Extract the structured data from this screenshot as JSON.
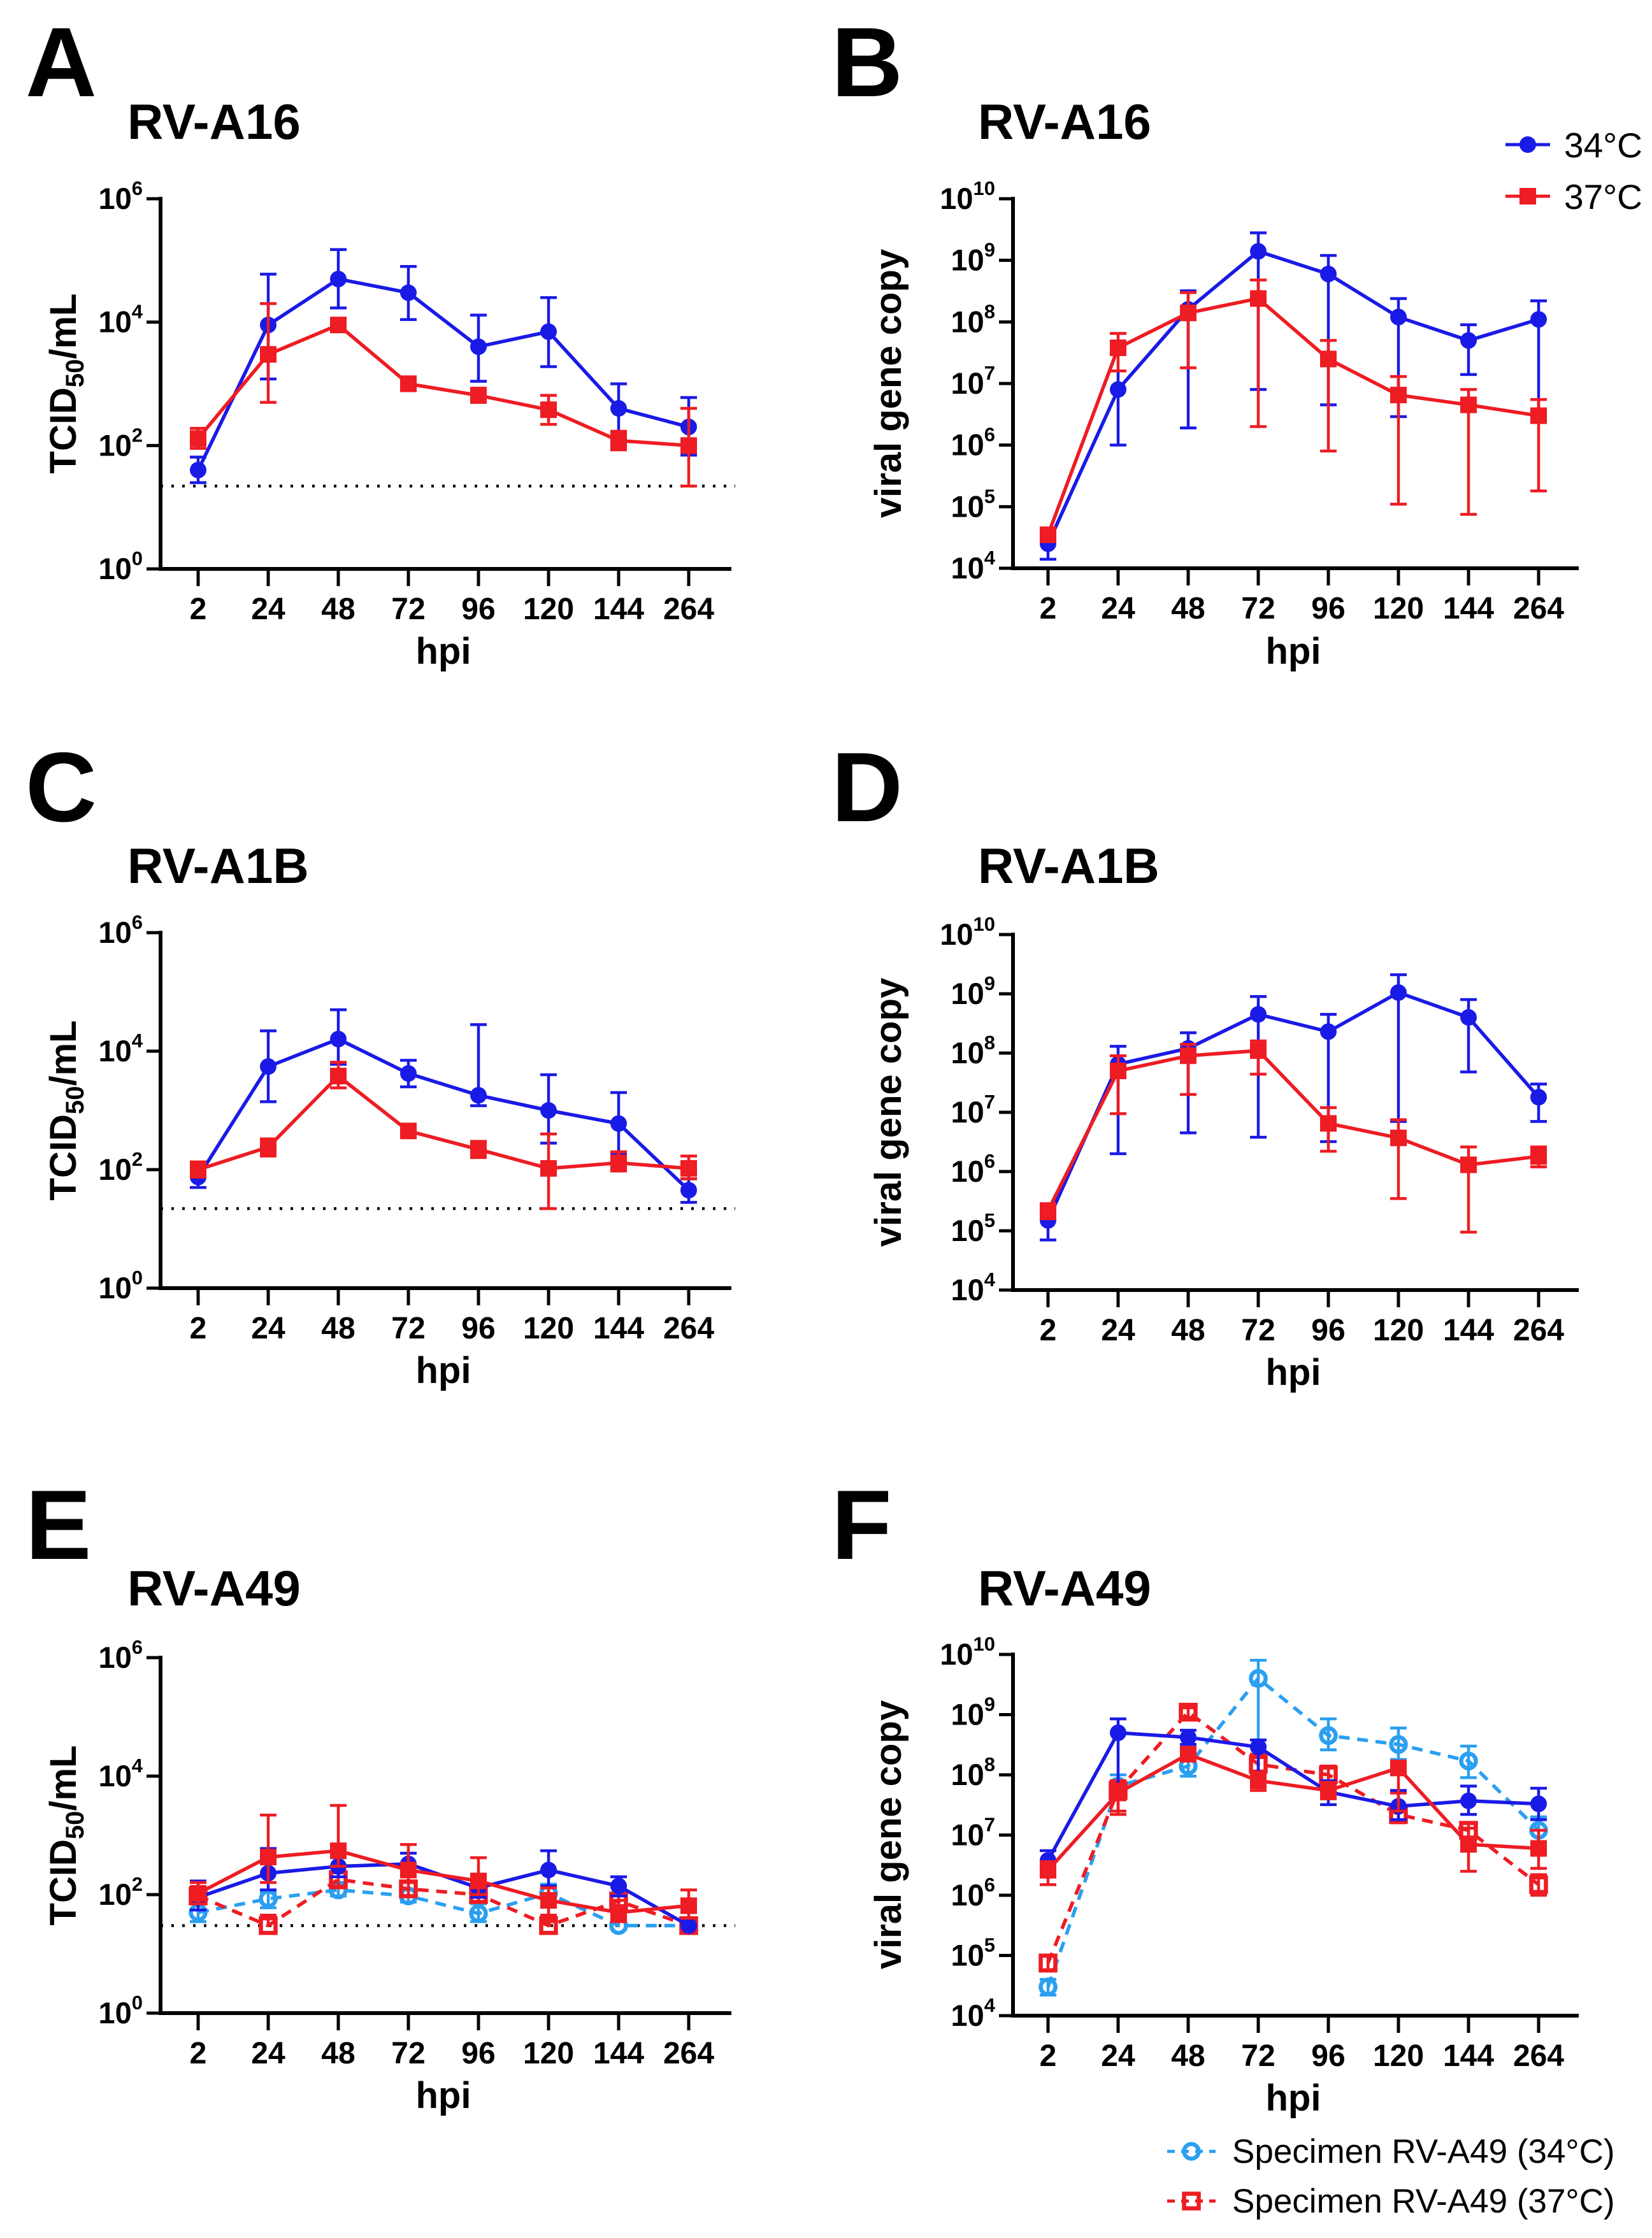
{
  "figure": {
    "background": "#ffffff"
  },
  "colors": {
    "blue_34": "#1a1ae6",
    "red_37": "#ee1c23",
    "cyan_specimen": "#2b9ff0",
    "axis": "#000000"
  },
  "panels": [
    {
      "letter": "A",
      "title": "RV-A16",
      "ylabel_main": "TCID",
      "ylabel_sub": "50",
      "ylabel_rest": "/mL",
      "xlabel": "hpi"
    },
    {
      "letter": "B",
      "title": "RV-A16",
      "ylabel_main": "viral gene copy",
      "ylabel_sub": "",
      "ylabel_rest": "",
      "xlabel": "hpi"
    },
    {
      "letter": "C",
      "title": "RV-A1B",
      "ylabel_main": "TCID",
      "ylabel_sub": "50",
      "ylabel_rest": "/mL",
      "xlabel": "hpi"
    },
    {
      "letter": "D",
      "title": "RV-A1B",
      "ylabel_main": "viral gene copy",
      "ylabel_sub": "",
      "ylabel_rest": "",
      "xlabel": "hpi"
    },
    {
      "letter": "E",
      "title": "RV-A49",
      "ylabel_main": "TCID",
      "ylabel_sub": "50",
      "ylabel_rest": "/mL",
      "xlabel": "hpi"
    },
    {
      "letter": "F",
      "title": "RV-A49",
      "ylabel_main": "viral gene copy",
      "ylabel_sub": "",
      "ylabel_rest": "",
      "xlabel": "hpi"
    }
  ],
  "legend_top": {
    "items": [
      {
        "label": "34°C",
        "marker": "circle-filled",
        "color": "#1a1ae6",
        "line": "solid"
      },
      {
        "label": "37°C",
        "marker": "square-filled",
        "color": "#ee1c23",
        "line": "solid"
      }
    ]
  },
  "legend_bottom": {
    "items": [
      {
        "label": "Specimen RV-A49 (34°C)",
        "marker": "circle-open",
        "color": "#2b9ff0",
        "line": "dashed"
      },
      {
        "label": "Specimen RV-A49 (37°C)",
        "marker": "square-open",
        "color": "#ee1c23",
        "line": "dashed"
      }
    ]
  },
  "chart_data": [
    {
      "type": "line",
      "title": "RV-A16",
      "xlabel": "hpi",
      "ylabel": "TCID50/mL",
      "yscale": "log10",
      "x_categories": [
        "2",
        "24",
        "48",
        "72",
        "96",
        "120",
        "144",
        "264"
      ],
      "y_axis": {
        "exp_min": 0,
        "exp_max": 6,
        "ticks_exp": [
          0,
          2,
          4,
          6
        ]
      },
      "detection_limit": 22,
      "series": [
        {
          "name": "34°C",
          "color": "#1a1ae6",
          "marker": "circle-filled",
          "line": "solid",
          "values": [
            40,
            9000,
            50000,
            30000,
            4000,
            7000,
            400,
            200
          ],
          "err_hi": [
            65,
            60000,
            150000,
            80000,
            13000,
            25000,
            1000,
            600
          ],
          "err_lo": [
            25,
            1200,
            17000,
            11000,
            1100,
            1900,
            150,
            70
          ]
        },
        {
          "name": "37°C",
          "color": "#ee1c23",
          "marker": "square-filled",
          "line": "solid",
          "values": [
            130,
            3000,
            9000,
            1000,
            650,
            380,
            120,
            100
          ],
          "err_hi": [
            190,
            20000,
            9500,
            1300,
            850,
            650,
            170,
            400
          ],
          "err_lo": [
            90,
            500,
            8500,
            800,
            500,
            220,
            85,
            22
          ]
        }
      ]
    },
    {
      "type": "line",
      "title": "RV-A16",
      "xlabel": "hpi",
      "ylabel": "viral gene copy",
      "yscale": "log10",
      "x_categories": [
        "2",
        "24",
        "48",
        "72",
        "96",
        "120",
        "144",
        "264"
      ],
      "y_axis": {
        "exp_min": 4,
        "exp_max": 10,
        "ticks_exp": [
          4,
          5,
          6,
          7,
          8,
          9,
          10
        ]
      },
      "detection_limit": null,
      "series": [
        {
          "name": "34°C",
          "color": "#1a1ae6",
          "marker": "circle-filled",
          "line": "solid",
          "values": [
            25000,
            8000000.0,
            160000000.0,
            1400000000.0,
            600000000.0,
            120000000.0,
            50000000.0,
            110000000.0
          ],
          "err_hi": [
            40000,
            16000000.0,
            320000000.0,
            2800000000.0,
            1200000000.0,
            240000000.0,
            90000000.0,
            220000000.0
          ],
          "err_lo": [
            14000,
            1000000.0,
            1900000.0,
            8000000.0,
            4500000.0,
            2900000.0,
            14000000.0,
            3500000.0
          ]
        },
        {
          "name": "37°C",
          "color": "#ee1c23",
          "marker": "square-filled",
          "line": "solid",
          "values": [
            35000,
            38000000.0,
            140000000.0,
            240000000.0,
            25000000.0,
            6500000.0,
            4500000.0,
            3000000.0
          ],
          "err_hi": [
            45000,
            65000000.0,
            300000000.0,
            480000000.0,
            50000000.0,
            13000000.0,
            8000000.0,
            5500000.0
          ],
          "err_lo": [
            28000,
            16000000.0,
            18000000.0,
            2000000.0,
            800000.0,
            110000.0,
            75000.0,
            180000.0
          ]
        }
      ]
    },
    {
      "type": "line",
      "title": "RV-A1B",
      "xlabel": "hpi",
      "ylabel": "TCID50/mL",
      "yscale": "log10",
      "x_categories": [
        "2",
        "24",
        "48",
        "72",
        "96",
        "120",
        "144",
        "264"
      ],
      "y_axis": {
        "exp_min": 0,
        "exp_max": 6,
        "ticks_exp": [
          0,
          2,
          4,
          6
        ]
      },
      "detection_limit": 22,
      "series": [
        {
          "name": "34°C",
          "color": "#1a1ae6",
          "marker": "circle-filled",
          "line": "solid",
          "values": [
            75,
            5500,
            16000,
            4200,
            1800,
            1000,
            600,
            45
          ],
          "err_hi": [
            110,
            22000,
            50000,
            7000,
            28000,
            4000,
            2000,
            70
          ],
          "err_lo": [
            50,
            1400,
            6000,
            2500,
            1200,
            280,
            180,
            28
          ]
        },
        {
          "name": "37°C",
          "color": "#ee1c23",
          "marker": "square-filled",
          "line": "solid",
          "values": [
            100,
            240,
            3800,
            450,
            220,
            105,
            130,
            105
          ],
          "err_hi": [
            135,
            330,
            6500,
            520,
            300,
            400,
            200,
            170
          ],
          "err_lo": [
            75,
            170,
            2400,
            380,
            160,
            22,
            95,
            70
          ]
        }
      ]
    },
    {
      "type": "line",
      "title": "RV-A1B",
      "xlabel": "hpi",
      "ylabel": "viral gene copy",
      "yscale": "log10",
      "x_categories": [
        "2",
        "24",
        "48",
        "72",
        "96",
        "120",
        "144",
        "264"
      ],
      "y_axis": {
        "exp_min": 4,
        "exp_max": 10,
        "ticks_exp": [
          4,
          5,
          6,
          7,
          8,
          9,
          10
        ]
      },
      "detection_limit": null,
      "series": [
        {
          "name": "34°C",
          "color": "#1a1ae6",
          "marker": "circle-filled",
          "line": "solid",
          "values": [
            150000.0,
            65000000.0,
            120000000.0,
            450000000.0,
            230000000.0,
            1050000000.0,
            400000000.0,
            18000000.0
          ],
          "err_hi": [
            220000.0,
            130000000.0,
            220000000.0,
            900000000.0,
            450000000.0,
            2100000000.0,
            800000000.0,
            30000000.0
          ],
          "err_lo": [
            70000.0,
            2000000.0,
            4500000.0,
            3800000.0,
            3200000.0,
            7000000.0,
            48000000.0,
            7000000.0
          ]
        },
        {
          "name": "37°C",
          "color": "#ee1c23",
          "marker": "square-filled",
          "line": "solid",
          "values": [
            220000.0,
            50000000.0,
            90000000.0,
            110000000.0,
            6500000.0,
            3700000.0,
            1300000.0,
            1800000.0
          ],
          "err_hi": [
            280000.0,
            90000000.0,
            140000000.0,
            160000000.0,
            12000000.0,
            7500000.0,
            2600000.0,
            2600000.0
          ],
          "err_lo": [
            160000.0,
            9500000.0,
            20000000.0,
            44000000.0,
            2200000.0,
            350000.0,
            95000.0,
            1200000.0
          ]
        }
      ]
    },
    {
      "type": "line",
      "title": "RV-A49",
      "xlabel": "hpi",
      "ylabel": "TCID50/mL",
      "yscale": "log10",
      "x_categories": [
        "2",
        "24",
        "48",
        "72",
        "96",
        "120",
        "144",
        "264"
      ],
      "y_axis": {
        "exp_min": 0,
        "exp_max": 6,
        "ticks_exp": [
          0,
          2,
          4,
          6
        ]
      },
      "detection_limit": 30,
      "series": [
        {
          "name": "Specimen RV-A49 (34°C)",
          "color": "#2b9ff0",
          "marker": "circle-open",
          "line": "dashed",
          "values": [
            50,
            85,
            120,
            95,
            48,
            105,
            30,
            30
          ],
          "err_hi": [
            80,
            110,
            160,
            120,
            70,
            150,
            40,
            35
          ],
          "err_lo": [
            35,
            60,
            95,
            75,
            35,
            70,
            30,
            30
          ]
        },
        {
          "name": "Specimen RV-A49 (37°C)",
          "color": "#ee1c23",
          "marker": "square-open",
          "line": "dashed",
          "values": [
            95,
            30,
            180,
            125,
            100,
            30,
            78,
            30
          ],
          "err_hi": [
            130,
            45,
            240,
            160,
            130,
            35,
            105,
            40
          ],
          "err_lo": [
            70,
            30,
            130,
            95,
            75,
            30,
            55,
            30
          ]
        },
        {
          "name": "34°C",
          "color": "#1a1ae6",
          "marker": "circle-filled",
          "line": "solid",
          "values": [
            90,
            230,
            300,
            330,
            130,
            260,
            140,
            30
          ],
          "err_hi": [
            170,
            600,
            420,
            500,
            220,
            550,
            200,
            30
          ],
          "err_lo": [
            55,
            120,
            200,
            240,
            90,
            140,
            95,
            30
          ]
        },
        {
          "name": "37°C",
          "color": "#ee1c23",
          "marker": "square-filled",
          "line": "solid",
          "values": [
            105,
            430,
            550,
            260,
            170,
            80,
            50,
            65
          ],
          "err_hi": [
            160,
            2200,
            3200,
            700,
            420,
            130,
            80,
            120
          ],
          "err_lo": [
            70,
            160,
            300,
            170,
            100,
            45,
            35,
            40
          ]
        }
      ]
    },
    {
      "type": "line",
      "title": "RV-A49",
      "xlabel": "hpi",
      "ylabel": "viral gene copy",
      "yscale": "log10",
      "x_categories": [
        "2",
        "24",
        "48",
        "72",
        "96",
        "120",
        "144",
        "264"
      ],
      "y_axis": {
        "exp_min": 4,
        "exp_max": 10,
        "ticks_exp": [
          4,
          5,
          6,
          7,
          8,
          9,
          10
        ]
      },
      "detection_limit": null,
      "series": [
        {
          "name": "Specimen RV-A49 (34°C)",
          "color": "#2b9ff0",
          "marker": "circle-open",
          "line": "dashed",
          "values": [
            30000.0,
            65000000.0,
            140000000.0,
            4000000000.0,
            450000000.0,
            320000000.0,
            170000000.0,
            12000000.0
          ],
          "err_hi": [
            40000.0,
            100000000.0,
            190000000.0,
            8000000000.0,
            850000000.0,
            600000000.0,
            300000000.0,
            20000000.0
          ],
          "err_lo": [
            22000.0,
            40000000.0,
            95000000.0,
            300000000.0,
            260000000.0,
            180000000.0,
            90000000.0,
            7000000.0
          ]
        },
        {
          "name": "Specimen RV-A49 (37°C)",
          "color": "#ee1c23",
          "marker": "square-open",
          "line": "dashed",
          "values": [
            75000.0,
            55000000.0,
            1100000000.0,
            150000000.0,
            100000000.0,
            22000000.0,
            12000000.0,
            1500000.0
          ],
          "err_hi": [
            100000.0,
            80000000.0,
            1300000000.0,
            220000000.0,
            140000000.0,
            50000000.0,
            16000000.0,
            2200000.0
          ],
          "err_lo": [
            55000.0,
            22000000.0,
            900000000.0,
            90000000.0,
            70000000.0,
            16000000.0,
            8000000.0,
            1000000.0
          ]
        },
        {
          "name": "34°C",
          "color": "#1a1ae6",
          "marker": "circle-filled",
          "line": "solid",
          "values": [
            3800000.0,
            500000000.0,
            420000000.0,
            290000000.0,
            52000000.0,
            30000000.0,
            37000000.0,
            33000000.0
          ],
          "err_hi": [
            5500000.0,
            850000000.0,
            550000000.0,
            380000000.0,
            80000000.0,
            55000000.0,
            65000000.0,
            60000000.0
          ],
          "err_lo": [
            2600000.0,
            60000000.0,
            320000000.0,
            65000000.0,
            32000000.0,
            18000000.0,
            22000000.0,
            18000000.0
          ]
        },
        {
          "name": "37°C",
          "color": "#ee1c23",
          "marker": "square-filled",
          "line": "solid",
          "values": [
            2600000.0,
            50000000.0,
            220000000.0,
            80000000.0,
            55000000.0,
            130000000.0,
            7000000.0,
            6000000.0
          ],
          "err_hi": [
            3600000.0,
            70000000.0,
            280000000.0,
            110000000.0,
            75000000.0,
            160000000.0,
            13000000.0,
            12000000.0
          ],
          "err_lo": [
            1500000.0,
            25000000.0,
            170000000.0,
            55000000.0,
            40000000.0,
            25000000.0,
            2500000.0,
            2800000.0
          ]
        }
      ]
    }
  ]
}
